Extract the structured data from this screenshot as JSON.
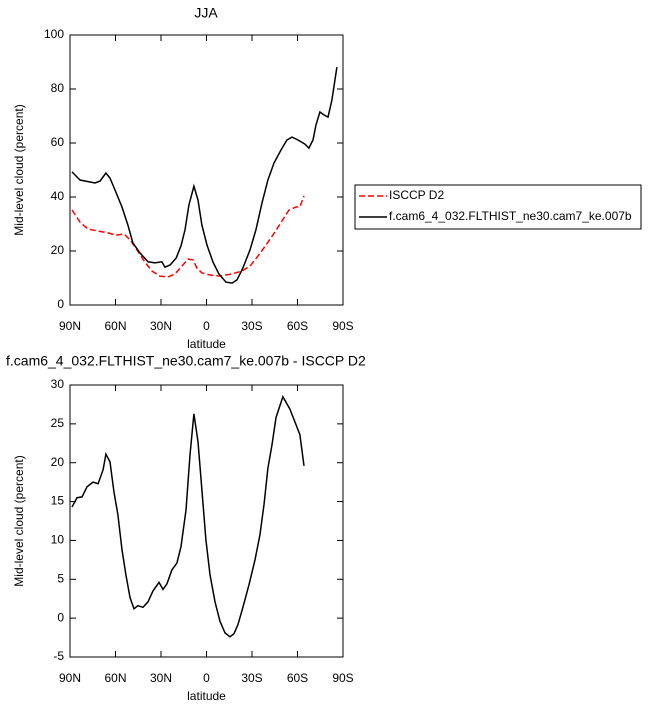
{
  "chart_data": [
    {
      "type": "line",
      "title": "JJA",
      "xlabel": "latitude",
      "ylabel": "Mid-level cloud (percent)",
      "xlim": [
        90,
        -90
      ],
      "ylim": [
        0,
        100
      ],
      "xticks": [
        {
          "value": 90,
          "label": "90N"
        },
        {
          "value": 60,
          "label": "60N"
        },
        {
          "value": 30,
          "label": "30N"
        },
        0,
        {
          "value": -30,
          "label": "30S"
        },
        {
          "value": -60,
          "label": "60S"
        },
        {
          "value": -90,
          "label": "90S"
        }
      ],
      "yticks": [
        0,
        20,
        40,
        60,
        80,
        100
      ],
      "legend": "right",
      "series": [
        {
          "name": "ISCCP D2",
          "color": "#ff0000",
          "line_style": "dashed",
          "x": [
            88.7,
            83.4,
            78.1,
            71.5,
            64.9,
            59.7,
            54.4,
            50.4,
            45.8,
            40.6,
            36,
            30.7,
            25.4,
            20.8,
            16.2,
            12.2,
            8.9,
            6.3,
            3,
            -2.3,
            -8.9,
            -16.8,
            -23.4,
            -28.7,
            -33.9,
            -39.2,
            -45.1,
            -49.7,
            -54.4,
            -59,
            -61.6,
            -64.3
          ],
          "values": [
            35.2,
            30.7,
            28.1,
            27.4,
            26.7,
            25.9,
            26.3,
            24.1,
            20.4,
            15.9,
            12.6,
            10.7,
            10.4,
            11.5,
            14.4,
            17,
            16.7,
            13.7,
            11.9,
            11.1,
            10.7,
            11.5,
            12.6,
            14.4,
            18.1,
            22.2,
            27,
            31.1,
            35.2,
            36.3,
            36.3,
            40.4
          ]
        },
        {
          "name": "f.cam6_4_032.FLTHIST_ne30.cam7_ke.007b",
          "color": "#000000",
          "line_style": "solid",
          "x": [
            88.7,
            83.4,
            73.5,
            70.2,
            66.3,
            63.6,
            60.3,
            55.7,
            51.8,
            48.5,
            43.9,
            38.6,
            34,
            29.4,
            27.4,
            24,
            20,
            16.8,
            14.2,
            11.6,
            8.3,
            5.6,
            3,
            -0.3,
            -4.3,
            -8.2,
            -12.8,
            -16.8,
            -20.1,
            -24,
            -28.7,
            -32.6,
            -36.6,
            -40.5,
            -44.5,
            -49.1,
            -53,
            -56.3,
            -60.3,
            -64.9,
            -67.5,
            -70.2,
            -72.2,
            -74.8,
            -77.4,
            -80.1,
            -82.7,
            -86
          ],
          "values": [
            49.3,
            46.3,
            45.2,
            45.9,
            48.9,
            47,
            42.6,
            36.3,
            29.6,
            23,
            19.3,
            16,
            15.6,
            16,
            14,
            14.8,
            17.4,
            21.9,
            27.8,
            37,
            44,
            38.9,
            29.6,
            22.2,
            15.9,
            11.5,
            8.5,
            8.1,
            9.3,
            13.7,
            20.4,
            27.8,
            37.8,
            46.3,
            52.6,
            57.4,
            61.1,
            62.2,
            61.1,
            59.6,
            58.1,
            61.1,
            66.7,
            71.5,
            70.4,
            69.6,
            75.9,
            88.1
          ]
        }
      ]
    },
    {
      "type": "line",
      "title": "f.cam6_4_032.FLTHIST_ne30.cam7_ke.007b - ISCCP D2",
      "xlabel": "latitude",
      "ylabel": "Mid-level cloud (percent)",
      "xlim": [
        90,
        -90
      ],
      "ylim": [
        -5,
        30
      ],
      "xticks": [
        {
          "value": 90,
          "label": "90N"
        },
        {
          "value": 60,
          "label": "60N"
        },
        {
          "value": 30,
          "label": "30N"
        },
        0,
        {
          "value": -30,
          "label": "30S"
        },
        {
          "value": -60,
          "label": "60S"
        },
        {
          "value": -90,
          "label": "90S"
        }
      ],
      "yticks": [
        -5,
        0,
        5,
        10,
        15,
        20,
        25,
        30
      ],
      "series": [
        {
          "color": "#000000",
          "line_style": "solid",
          "x": [
            88.7,
            85.4,
            82.1,
            78.8,
            74.8,
            71.5,
            68.2,
            66.3,
            63.6,
            61,
            58.4,
            55.7,
            53.1,
            50.4,
            47.8,
            45.2,
            41.9,
            38.6,
            35.3,
            31.3,
            28.7,
            26.1,
            22.8,
            19.5,
            16.8,
            13.5,
            10.9,
            8.3,
            5.6,
            3,
            0.4,
            -2.3,
            -5.6,
            -8.9,
            -12.2,
            -15.5,
            -18.1,
            -20.8,
            -24,
            -28,
            -32,
            -35.2,
            -37.9,
            -40.5,
            -43.2,
            -45.8,
            -50.4,
            -55,
            -59,
            -61.6,
            -64.3
          ],
          "values": [
            14.3,
            15.5,
            15.6,
            16.9,
            17.5,
            17.3,
            19.1,
            21.1,
            20.1,
            16.2,
            13.3,
            8.8,
            5.5,
            2.6,
            1.2,
            1.6,
            1.4,
            2.1,
            3.5,
            4.6,
            3.7,
            4.4,
            6.2,
            7.1,
            9.2,
            13.9,
            21,
            26.3,
            22.7,
            16.5,
            10.1,
            5.6,
            2.1,
            -0.4,
            -1.9,
            -2.4,
            -2,
            -0.8,
            1.4,
            4.3,
            7.5,
            10.7,
            14.6,
            19.3,
            22.3,
            25.8,
            28.5,
            26.9,
            24.9,
            23.6,
            19.6
          ]
        }
      ]
    }
  ]
}
